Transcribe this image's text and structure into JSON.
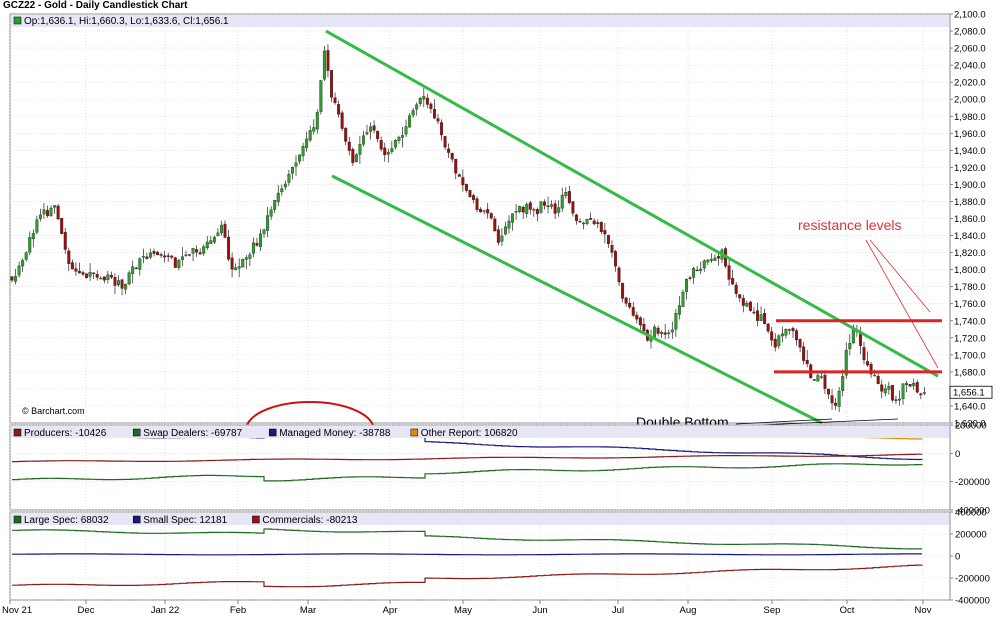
{
  "chart_title": "GCZ22 - Gold - Daily Candlestick Chart",
  "ohlc_label": "Op:1,636.1, Hi:1,660.3, Lo:1,633.6, Cl:1,656.1",
  "watermark": "© Barchart.com",
  "last_price_tag": "1,656.1",
  "annotations": {
    "resistance": "resistance levels",
    "double_bottom": "Double Bottom"
  },
  "colors": {
    "up": "#2ca02c",
    "down": "#9b0f0f",
    "channel": "#33bb44",
    "resistance": "#dd2222",
    "legend_bg": "#e6e6f6",
    "grid": "#d0d0d0"
  },
  "chart_data": [
    {
      "type": "candlestick",
      "title": "GCZ22 - Gold - Daily Candlestick Chart",
      "y_ticks": [
        "2,100.0",
        "2,080.0",
        "2,060.0",
        "2,040.0",
        "2,020.0",
        "2,000.0",
        "1,980.0",
        "1,960.0",
        "1,940.0",
        "1,920.0",
        "1,900.0",
        "1,880.0",
        "1,860.0",
        "1,840.0",
        "1,820.0",
        "1,800.0",
        "1,780.0",
        "1,760.0",
        "1,740.0",
        "1,720.0",
        "1,700.0",
        "1,680.0",
        "1,660.0",
        "1,640.0",
        "1,620.0"
      ],
      "ylim": [
        1620,
        2100
      ],
      "x_ticks": [
        "Nov 21",
        "Dec",
        "Jan 22",
        "Feb",
        "Mar",
        "Apr",
        "May",
        "Jun",
        "Jul",
        "Aug",
        "Sep",
        "Oct",
        "Nov"
      ],
      "series": [
        {
          "name": "Close",
          "x": [
            "Nov 21",
            "Dec",
            "Jan 22",
            "Feb",
            "Mar",
            "Apr",
            "May",
            "Jun",
            "Jul",
            "Aug",
            "Sep",
            "Oct",
            "Nov"
          ],
          "values": [
            1790,
            1785,
            1815,
            1800,
            2000,
            1935,
            1850,
            1855,
            1760,
            1805,
            1715,
            1680,
            1656
          ]
        }
      ],
      "last": {
        "open": 1636.1,
        "high": 1660.3,
        "low": 1633.6,
        "close": 1656.1
      },
      "resistance_levels": [
        1740,
        1680
      ]
    },
    {
      "type": "line",
      "legend": [
        {
          "label": "Producers: -10426",
          "color": "#8b1a1a"
        },
        {
          "label": "Swap Dealers: -69787",
          "color": "#1e6b1e"
        },
        {
          "label": "Managed Money: -38788",
          "color": "#1a1a7a"
        },
        {
          "label": "Other Report: 106820",
          "color": "#e08a00"
        }
      ],
      "y_ticks": [
        "200000",
        "0",
        "-200000",
        "-400000"
      ],
      "ylim": [
        -400000,
        200000
      ]
    },
    {
      "type": "line",
      "legend": [
        {
          "label": "Large Spec: 68032",
          "color": "#1e6b1e"
        },
        {
          "label": "Small Spec: 12181",
          "color": "#1a1a7a"
        },
        {
          "label": "Commercials: -80213",
          "color": "#8b1a1a"
        }
      ],
      "y_ticks": [
        "400000",
        "200000",
        "0",
        "-200000",
        "-400000"
      ],
      "ylim": [
        -400000,
        400000
      ]
    }
  ]
}
